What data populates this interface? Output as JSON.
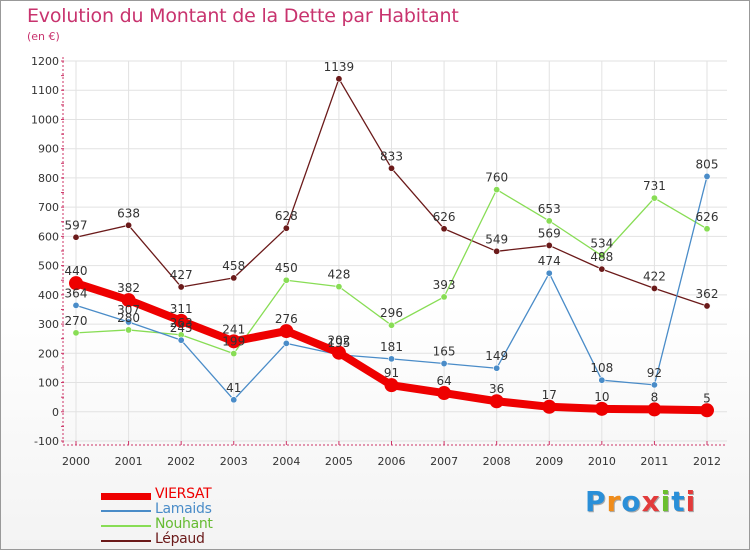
{
  "title": "Evolution du Montant de la Dette par Habitant",
  "subtitle": "(en €)",
  "logo": {
    "text": "Proxiti",
    "colors": [
      "#2a8fd8",
      "#f08c1a",
      "#2a8fd8",
      "#e23b3b",
      "#6bbf2e",
      "#2a8fd8",
      "#e23b3b"
    ]
  },
  "chart_data": {
    "type": "line",
    "x": [
      "2000",
      "2001",
      "2002",
      "2003",
      "2004",
      "2005",
      "2006",
      "2007",
      "2008",
      "2009",
      "2010",
      "2011",
      "2012"
    ],
    "ylim": [
      -100,
      1200
    ],
    "yticks": [
      "-100",
      "0",
      "100",
      "200",
      "300",
      "400",
      "500",
      "600",
      "700",
      "800",
      "900",
      "1000",
      "1100",
      "1200"
    ],
    "grid": true,
    "legend_position": "bottom-left",
    "series": [
      {
        "name": "VIERSAT",
        "color": "#ee0000",
        "values": [
          440,
          382,
          311,
          241,
          276,
          202,
          91,
          64,
          36,
          17,
          10,
          8,
          5
        ]
      },
      {
        "name": "Lamaids",
        "color": "#4a8cc8",
        "values": [
          364,
          307,
          245,
          41,
          234,
          195,
          181,
          165,
          149,
          474,
          108,
          92,
          805
        ]
      },
      {
        "name": "Nouhant",
        "color": "#88dd55",
        "values": [
          270,
          280,
          263,
          199,
          450,
          428,
          296,
          393,
          760,
          653,
          534,
          731,
          626
        ]
      },
      {
        "name": "Lépaud",
        "color": "#6b1a1a",
        "values": [
          597,
          638,
          427,
          458,
          628,
          1139,
          833,
          626,
          549,
          569,
          488,
          422,
          362
        ]
      }
    ],
    "data_labels": {
      "VIERSAT": [
        "440",
        "382",
        "311",
        "241",
        "276",
        "202",
        "91",
        "64",
        "36",
        "17",
        "10",
        "8",
        "5"
      ],
      "Lamaids": [
        "364",
        "307",
        "245",
        "41",
        "",
        "195",
        "181",
        "165",
        "149",
        "474",
        "108",
        "92",
        "805"
      ],
      "Nouhant": [
        "270",
        "280",
        "263",
        "199",
        "450",
        "428",
        "296",
        "393",
        "760",
        "653",
        "534",
        "731",
        "626"
      ],
      "Lépaud": [
        "597",
        "638",
        "427",
        "458",
        "628",
        "1139",
        "833",
        "626",
        "549",
        "569",
        "488",
        "422",
        "362"
      ]
    }
  }
}
